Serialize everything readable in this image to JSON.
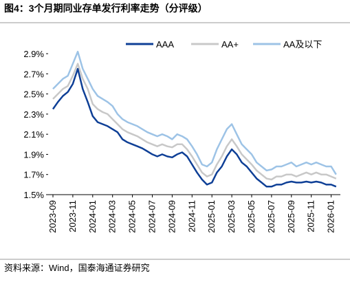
{
  "chart_data": {
    "type": "line",
    "title": "图4：3个月期同业存单发行利率走势（分评级）",
    "source": "资料来源：Wind，国泰海通证券研究",
    "categories": [
      "2023-09",
      null,
      null,
      null,
      "2023-11",
      null,
      null,
      null,
      "2024-01",
      null,
      null,
      null,
      "2024-03",
      null,
      null,
      null,
      "2024-05",
      null,
      null,
      null,
      "2024-07",
      null,
      null,
      null,
      "2024-09",
      null,
      null,
      null,
      "2024-11",
      null,
      null,
      null,
      "2025-01",
      null,
      null,
      null,
      "2025-03",
      null,
      null,
      null,
      "2025-05",
      null,
      null,
      null,
      "2025-07",
      null,
      null,
      null,
      "2025-09",
      null,
      null,
      null,
      "2025-11",
      null,
      null,
      null,
      "2026-01",
      null
    ],
    "series": [
      {
        "name": "AAA",
        "color": "#0e3f96",
        "values": [
          2.35,
          2.42,
          2.48,
          2.52,
          2.6,
          2.75,
          2.55,
          2.42,
          2.28,
          2.22,
          2.2,
          2.18,
          2.15,
          2.12,
          2.05,
          2.02,
          2.0,
          1.98,
          1.96,
          1.93,
          1.9,
          1.88,
          1.9,
          1.88,
          1.87,
          1.9,
          1.92,
          1.88,
          1.8,
          1.72,
          1.65,
          1.6,
          1.62,
          1.72,
          1.78,
          1.88,
          1.95,
          1.9,
          1.82,
          1.78,
          1.72,
          1.66,
          1.62,
          1.58,
          1.58,
          1.6,
          1.6,
          1.62,
          1.63,
          1.62,
          1.62,
          1.63,
          1.62,
          1.63,
          1.62,
          1.6,
          1.6,
          1.58
        ]
      },
      {
        "name": "AA+",
        "color": "#c8c8c8",
        "values": [
          2.45,
          2.5,
          2.55,
          2.58,
          2.68,
          2.8,
          2.65,
          2.55,
          2.4,
          2.35,
          2.32,
          2.3,
          2.25,
          2.2,
          2.15,
          2.12,
          2.1,
          2.08,
          2.05,
          2.02,
          2.0,
          1.98,
          2.0,
          1.98,
          1.97,
          2.0,
          2.0,
          1.95,
          1.88,
          1.8,
          1.72,
          1.68,
          1.7,
          1.8,
          1.88,
          1.98,
          2.05,
          1.98,
          1.9,
          1.85,
          1.8,
          1.74,
          1.7,
          1.66,
          1.65,
          1.68,
          1.68,
          1.7,
          1.7,
          1.68,
          1.7,
          1.72,
          1.7,
          1.72,
          1.7,
          1.7,
          1.68,
          1.66
        ]
      },
      {
        "name": "AA及以下",
        "color": "#9dc3e6",
        "values": [
          2.55,
          2.6,
          2.65,
          2.68,
          2.8,
          2.92,
          2.75,
          2.65,
          2.55,
          2.48,
          2.45,
          2.42,
          2.38,
          2.3,
          2.25,
          2.22,
          2.2,
          2.18,
          2.15,
          2.12,
          2.1,
          2.08,
          2.1,
          2.08,
          2.05,
          2.1,
          2.08,
          2.05,
          1.98,
          1.9,
          1.8,
          1.78,
          1.82,
          1.95,
          2.05,
          2.15,
          2.2,
          2.1,
          2.0,
          1.95,
          1.9,
          1.82,
          1.78,
          1.74,
          1.75,
          1.78,
          1.78,
          1.8,
          1.82,
          1.78,
          1.8,
          1.82,
          1.8,
          1.82,
          1.8,
          1.78,
          1.78,
          1.7
        ]
      }
    ],
    "ylim": [
      1.5,
      3.0
    ],
    "yticks": [
      {
        "value": 1.5,
        "label": "1.5%"
      },
      {
        "value": 1.7,
        "label": "1.7%"
      },
      {
        "value": 1.9,
        "label": "1.9%"
      },
      {
        "value": 2.1,
        "label": "2.1%"
      },
      {
        "value": 2.3,
        "label": "2.3%"
      },
      {
        "value": 2.5,
        "label": "2.5%"
      },
      {
        "value": 2.7,
        "label": "2.7%"
      },
      {
        "value": 2.9,
        "label": "2.9%"
      }
    ],
    "legend": "top-right"
  }
}
